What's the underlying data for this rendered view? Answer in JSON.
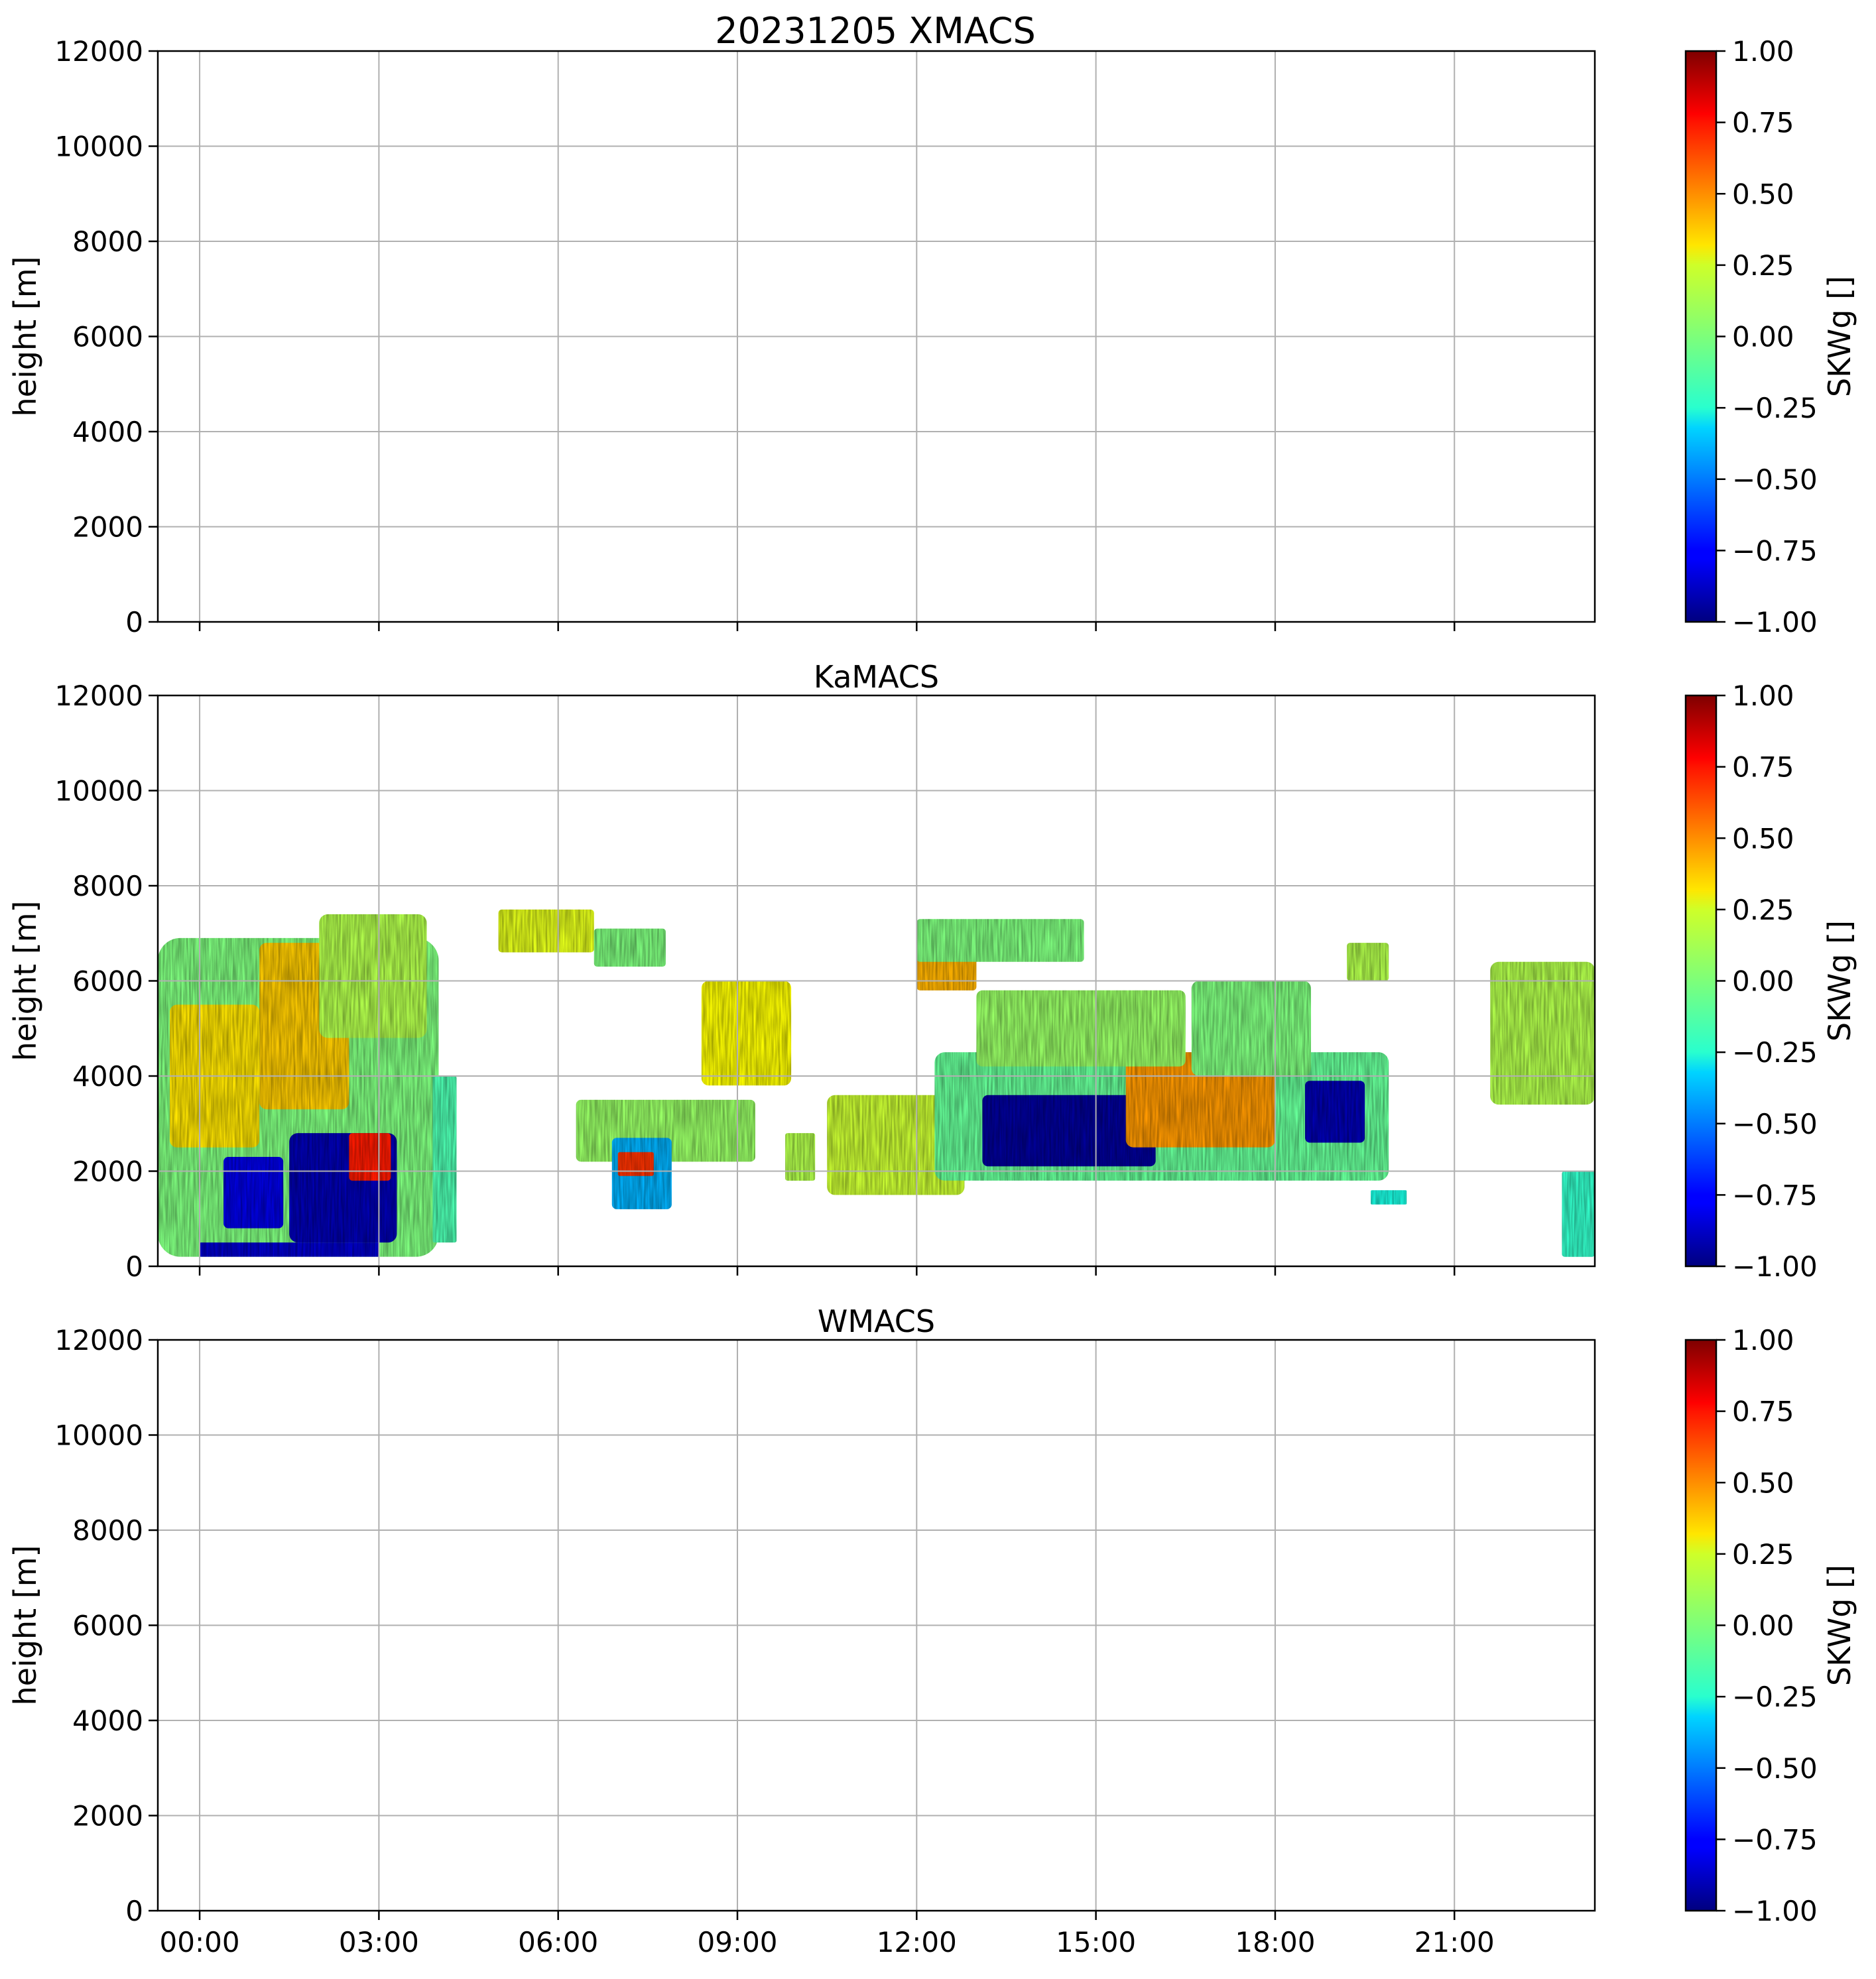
{
  "chart_data": [
    {
      "type": "heatmap",
      "title": "20231205 XMACS",
      "xlabel": "",
      "ylabel": "height [m]",
      "x_tick_labels": [
        "00:00",
        "03:00",
        "06:00",
        "09:00",
        "12:00",
        "15:00",
        "18:00",
        "21:00"
      ],
      "x_ticks_hours": [
        0,
        3,
        6,
        9,
        12,
        15,
        18,
        21
      ],
      "xlim_hours": [
        -0.7,
        23.35
      ],
      "ylim": [
        0,
        12000
      ],
      "y_tick_labels": [
        "0",
        "2000",
        "4000",
        "6000",
        "8000",
        "10000",
        "12000"
      ],
      "y_ticks": [
        0,
        2000,
        4000,
        6000,
        8000,
        10000,
        12000
      ],
      "grid": true,
      "colorbar": {
        "label": "SKWg []",
        "range": [
          -1,
          1
        ],
        "tick_labels": [
          "1.00",
          "0.75",
          "0.50",
          "0.25",
          "0.00",
          "−0.25",
          "−0.50",
          "−0.75",
          "−1.00"
        ],
        "colormap": "jet"
      },
      "data": "no data"
    },
    {
      "type": "heatmap",
      "title": "KaMACS",
      "xlabel": "",
      "ylabel": "height [m]",
      "x_tick_labels": [
        "00:00",
        "03:00",
        "06:00",
        "09:00",
        "12:00",
        "15:00",
        "18:00",
        "21:00"
      ],
      "x_ticks_hours": [
        0,
        3,
        6,
        9,
        12,
        15,
        18,
        21
      ],
      "xlim_hours": [
        -0.7,
        23.35
      ],
      "ylim": [
        0,
        12000
      ],
      "y_tick_labels": [
        "0",
        "2000",
        "4000",
        "6000",
        "8000",
        "10000",
        "12000"
      ],
      "y_ticks": [
        0,
        2000,
        4000,
        6000,
        8000,
        10000,
        12000
      ],
      "grid": true,
      "colorbar": {
        "label": "SKWg []",
        "range": [
          -1,
          1
        ],
        "tick_labels": [
          "1.00",
          "0.75",
          "0.50",
          "0.25",
          "0.00",
          "−0.25",
          "−0.50",
          "−0.75",
          "−1.00"
        ],
        "colormap": "jet"
      },
      "regions": [
        {
          "t0": -0.7,
          "t1": 4.0,
          "h0": 200,
          "h1": 6900,
          "skw": 0.0
        },
        {
          "t0": 1.0,
          "t1": 2.5,
          "h0": 3300,
          "h1": 6800,
          "skw": 0.35
        },
        {
          "t0": 2.0,
          "t1": 3.8,
          "h0": 4800,
          "h1": 7400,
          "skw": 0.1
        },
        {
          "t0": -0.5,
          "t1": 1.0,
          "h0": 2500,
          "h1": 5500,
          "skw": 0.3
        },
        {
          "t0": 1.5,
          "t1": 3.3,
          "h0": 500,
          "h1": 2800,
          "skw": -0.9
        },
        {
          "t0": 0.4,
          "t1": 1.4,
          "h0": 800,
          "h1": 2300,
          "skw": -0.8
        },
        {
          "t0": 0.0,
          "t1": 3.0,
          "h0": 200,
          "h1": 500,
          "skw": -0.85
        },
        {
          "t0": 2.5,
          "t1": 3.2,
          "h0": 1800,
          "h1": 2800,
          "skw": 0.7
        },
        {
          "t0": 3.9,
          "t1": 4.3,
          "h0": 500,
          "h1": 4000,
          "skw": -0.1
        },
        {
          "t0": 5.0,
          "t1": 6.6,
          "h0": 6600,
          "h1": 7500,
          "skw": 0.2
        },
        {
          "t0": 6.6,
          "t1": 7.8,
          "h0": 6300,
          "h1": 7100,
          "skw": 0.0
        },
        {
          "t0": 6.3,
          "t1": 9.3,
          "h0": 2200,
          "h1": 3500,
          "skw": 0.05
        },
        {
          "t0": 6.9,
          "t1": 7.9,
          "h0": 1200,
          "h1": 2700,
          "skw": -0.4
        },
        {
          "t0": 7.0,
          "t1": 7.6,
          "h0": 1900,
          "h1": 2400,
          "skw": 0.65
        },
        {
          "t0": 8.4,
          "t1": 9.9,
          "h0": 3800,
          "h1": 6000,
          "skw": 0.25
        },
        {
          "t0": 9.8,
          "t1": 10.3,
          "h0": 1800,
          "h1": 2800,
          "skw": 0.1
        },
        {
          "t0": 10.5,
          "t1": 12.8,
          "h0": 1500,
          "h1": 3600,
          "skw": 0.15
        },
        {
          "t0": 12.3,
          "t1": 19.9,
          "h0": 1800,
          "h1": 4500,
          "skw": -0.05
        },
        {
          "t0": 13.1,
          "t1": 16.0,
          "h0": 2100,
          "h1": 3600,
          "skw": -0.95
        },
        {
          "t0": 15.5,
          "t1": 18.0,
          "h0": 2500,
          "h1": 4500,
          "skw": 0.45
        },
        {
          "t0": 18.5,
          "t1": 19.5,
          "h0": 2600,
          "h1": 3900,
          "skw": -0.9
        },
        {
          "t0": 13.0,
          "t1": 16.5,
          "h0": 4200,
          "h1": 5800,
          "skw": 0.05
        },
        {
          "t0": 16.6,
          "t1": 18.6,
          "h0": 4000,
          "h1": 6000,
          "skw": 0.0
        },
        {
          "t0": 12.0,
          "t1": 13.0,
          "h0": 5800,
          "h1": 6700,
          "skw": 0.4
        },
        {
          "t0": 12.0,
          "t1": 14.8,
          "h0": 6400,
          "h1": 7300,
          "skw": 0.0
        },
        {
          "t0": 19.2,
          "t1": 19.9,
          "h0": 6000,
          "h1": 6800,
          "skw": 0.1
        },
        {
          "t0": 21.6,
          "t1": 23.35,
          "h0": 3400,
          "h1": 6400,
          "skw": 0.1
        },
        {
          "t0": 22.8,
          "t1": 23.35,
          "h0": 200,
          "h1": 2000,
          "skw": -0.15
        },
        {
          "t0": 19.6,
          "t1": 20.2,
          "h0": 1300,
          "h1": 1600,
          "skw": -0.2
        }
      ]
    },
    {
      "type": "heatmap",
      "title": "WMACS",
      "xlabel": "",
      "ylabel": "height [m]",
      "x_tick_labels": [
        "00:00",
        "03:00",
        "06:00",
        "09:00",
        "12:00",
        "15:00",
        "18:00",
        "21:00"
      ],
      "x_ticks_hours": [
        0,
        3,
        6,
        9,
        12,
        15,
        18,
        21
      ],
      "xlim_hours": [
        -0.7,
        23.35
      ],
      "ylim": [
        0,
        12000
      ],
      "y_tick_labels": [
        "0",
        "2000",
        "4000",
        "6000",
        "8000",
        "10000",
        "12000"
      ],
      "y_ticks": [
        0,
        2000,
        4000,
        6000,
        8000,
        10000,
        12000
      ],
      "grid": true,
      "colorbar": {
        "label": "SKWg []",
        "range": [
          -1,
          1
        ],
        "tick_labels": [
          "1.00",
          "0.75",
          "0.50",
          "0.25",
          "0.00",
          "−0.25",
          "−0.50",
          "−0.75",
          "−1.00"
        ],
        "colormap": "jet"
      },
      "data": "no data"
    }
  ]
}
